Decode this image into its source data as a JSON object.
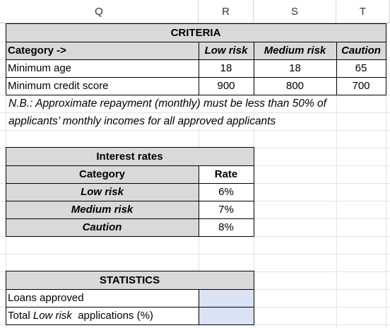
{
  "columns": [
    "Q",
    "R",
    "S",
    "T"
  ],
  "criteria": {
    "title": "CRITERIA",
    "header": [
      "Category ->",
      "Low risk",
      "Medium risk",
      "Caution"
    ],
    "rows": [
      [
        "Minimum age",
        "18",
        "18",
        "65"
      ],
      [
        "Minimum credit score",
        "900",
        "800",
        "700"
      ]
    ],
    "note_line1": "N.B.: Approximate repayment (monthly) must be less than 50% of",
    "note_line2": "applicants’ monthly incomes for all approved applicants"
  },
  "interest": {
    "title": "Interest rates",
    "col_category": "Category",
    "col_rate": "Rate",
    "rows": [
      [
        "Low risk",
        "6%"
      ],
      [
        "Medium risk",
        "7%"
      ],
      [
        "Caution",
        "8%"
      ]
    ]
  },
  "statistics": {
    "title": "STATISTICS",
    "loans_label": "Loans approved",
    "total_prefix": "Total ",
    "total_italic": "Low risk",
    "total_suffix": "  applications (%)",
    "loans_value": "",
    "total_value": ""
  },
  "colors": {
    "header_fill": "#d9d9d9",
    "input_fill": "#dae3f3"
  }
}
